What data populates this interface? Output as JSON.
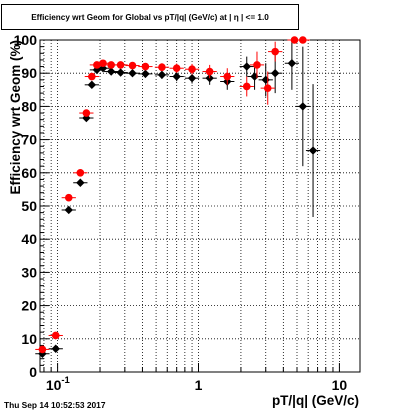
{
  "chart_data": {
    "type": "scatter",
    "title": "Efficiency wrt Geom for Global vs pT/|q| (GeV/c) at | η | <= 1.0",
    "xlabel": "pT/|q| (GeV/c)",
    "ylabel": "Efficiency wrt Geom (%)",
    "x_scale": "log",
    "xlim": [
      0.075,
      14
    ],
    "ylim": [
      0,
      100
    ],
    "x_tick_labels": [
      "10^-1",
      "1",
      "10"
    ],
    "y_tick_labels": [
      "0",
      "10",
      "20",
      "30",
      "40",
      "50",
      "60",
      "70",
      "80",
      "90",
      "100"
    ],
    "grid": true,
    "series": [
      {
        "color": "#000000",
        "marker": "diamond",
        "points": [
          {
            "x": 0.078,
            "y": 5.5,
            "err": 1.0
          },
          {
            "x": 0.097,
            "y": 7.0,
            "err": 1.0
          },
          {
            "x": 0.12,
            "y": 48.8,
            "err": 1.0
          },
          {
            "x": 0.145,
            "y": 57.0,
            "err": 1.0
          },
          {
            "x": 0.16,
            "y": 76.5,
            "err": 1.0
          },
          {
            "x": 0.175,
            "y": 86.5,
            "err": 1.0
          },
          {
            "x": 0.19,
            "y": 91.0,
            "err": 1.0
          },
          {
            "x": 0.21,
            "y": 91.5,
            "err": 1.0
          },
          {
            "x": 0.24,
            "y": 90.5,
            "err": 1.0
          },
          {
            "x": 0.28,
            "y": 90.2,
            "err": 1.0
          },
          {
            "x": 0.34,
            "y": 90.0,
            "err": 1.0
          },
          {
            "x": 0.42,
            "y": 89.8,
            "err": 1.0
          },
          {
            "x": 0.55,
            "y": 89.5,
            "err": 1.2
          },
          {
            "x": 0.7,
            "y": 89.0,
            "err": 1.4
          },
          {
            "x": 0.9,
            "y": 88.5,
            "err": 1.6
          },
          {
            "x": 1.2,
            "y": 88.5,
            "err": 2.0
          },
          {
            "x": 1.6,
            "y": 87.5,
            "err": 2.5
          },
          {
            "x": 2.2,
            "y": 92.0,
            "err": 3.0
          },
          {
            "x": 2.5,
            "y": 89.0,
            "err": 4.0
          },
          {
            "x": 3.0,
            "y": 88.0,
            "err": 5.0
          },
          {
            "x": 3.5,
            "y": 90.0,
            "err": 6.0
          },
          {
            "x": 4.6,
            "y": 93.0,
            "err": 8.0
          },
          {
            "x": 5.5,
            "y": 80.0,
            "err": 18.0
          },
          {
            "x": 6.5,
            "y": 66.7,
            "err": 20.0
          }
        ]
      },
      {
        "color": "#ff0000",
        "marker": "circle",
        "points": [
          {
            "x": 0.078,
            "y": 6.8,
            "err": 1.0
          },
          {
            "x": 0.097,
            "y": 11.0,
            "err": 1.0
          },
          {
            "x": 0.12,
            "y": 52.5,
            "err": 1.0
          },
          {
            "x": 0.145,
            "y": 60.0,
            "err": 1.0
          },
          {
            "x": 0.16,
            "y": 78.0,
            "err": 1.0
          },
          {
            "x": 0.175,
            "y": 89.0,
            "err": 1.0
          },
          {
            "x": 0.19,
            "y": 92.5,
            "err": 1.0
          },
          {
            "x": 0.21,
            "y": 93.0,
            "err": 1.0
          },
          {
            "x": 0.24,
            "y": 92.5,
            "err": 1.0
          },
          {
            "x": 0.28,
            "y": 92.5,
            "err": 1.0
          },
          {
            "x": 0.34,
            "y": 92.3,
            "err": 1.0
          },
          {
            "x": 0.42,
            "y": 92.0,
            "err": 1.0
          },
          {
            "x": 0.55,
            "y": 91.8,
            "err": 1.2
          },
          {
            "x": 0.7,
            "y": 91.5,
            "err": 1.4
          },
          {
            "x": 0.9,
            "y": 91.2,
            "err": 1.6
          },
          {
            "x": 1.2,
            "y": 90.5,
            "err": 2.0
          },
          {
            "x": 1.6,
            "y": 89.0,
            "err": 2.5
          },
          {
            "x": 2.2,
            "y": 86.0,
            "err": 3.0
          },
          {
            "x": 2.6,
            "y": 92.5,
            "err": 4.0
          },
          {
            "x": 3.1,
            "y": 85.5,
            "err": 5.0
          },
          {
            "x": 3.5,
            "y": 96.5,
            "err": 3.0
          },
          {
            "x": 4.8,
            "y": 100.0,
            "err": 0.0
          },
          {
            "x": 5.5,
            "y": 100.0,
            "err": 0.0
          }
        ]
      }
    ]
  },
  "footer": {
    "timestamp": "Thu Sep 14 10:52:53 2017"
  }
}
